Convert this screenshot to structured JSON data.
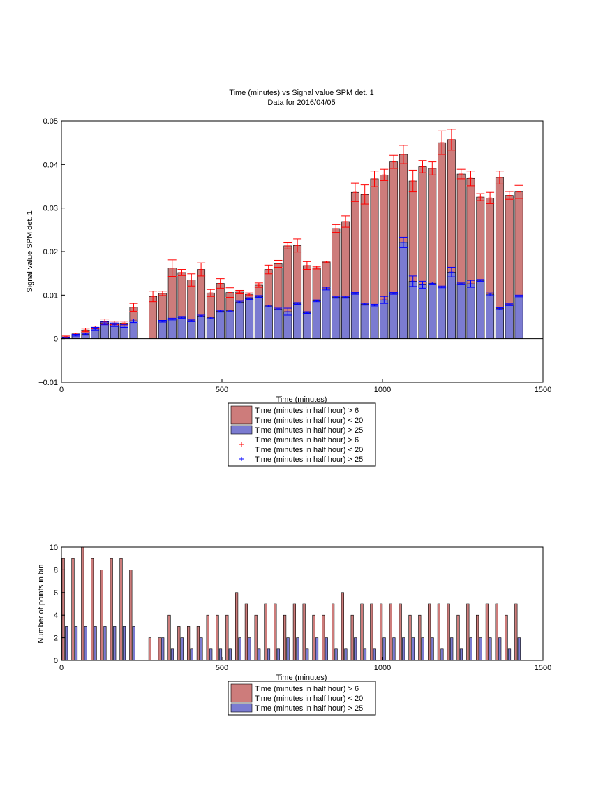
{
  "colors": {
    "bar_red": "#cd7c7b",
    "bar_blue": "#7b7bd1",
    "error_red": "#ff0000",
    "error_blue": "#0000ff",
    "axis": "#000000"
  },
  "chart_data": [
    {
      "type": "bar",
      "title": "Time (minutes) vs Signal value SPM det. 1",
      "subtitle": "Data for 2016/04/05",
      "xlabel": "Time (minutes)",
      "ylabel": "Signal value SPM det. 1",
      "xlim": [
        0,
        1500
      ],
      "ylim": [
        -0.01,
        0.05
      ],
      "xticks": [
        0,
        500,
        1000,
        1500
      ],
      "xtick_labels": [
        "0",
        "500",
        "1000",
        "1500"
      ],
      "yticks": [
        -0.01,
        0,
        0.01,
        0.02,
        0.03,
        0.04,
        0.05
      ],
      "ytick_labels": [
        "−0.01",
        "0",
        "0.01",
        "0.02",
        "0.03",
        "0.04",
        "0.05"
      ],
      "x": [
        15,
        45,
        75,
        105,
        135,
        165,
        195,
        225,
        255,
        285,
        315,
        345,
        375,
        405,
        435,
        465,
        495,
        525,
        555,
        585,
        615,
        645,
        675,
        705,
        735,
        765,
        795,
        825,
        855,
        885,
        915,
        945,
        975,
        1005,
        1035,
        1065,
        1095,
        1125,
        1155,
        1185,
        1215,
        1245,
        1275,
        1305,
        1335,
        1365,
        1395,
        1425
      ],
      "series": [
        {
          "name": "Time (minutes in half hour) > 6\nTime (minutes in half hour) < 20",
          "values": [
            0.0004,
            0.0011,
            0.002,
            0.0026,
            0.0039,
            0.0036,
            0.0036,
            0.0072,
            null,
            0.0097,
            0.0104,
            0.0162,
            0.0152,
            0.0135,
            0.0159,
            0.0105,
            0.0127,
            0.0106,
            0.0107,
            0.0102,
            0.0123,
            0.0159,
            0.0172,
            0.0213,
            0.0214,
            0.0168,
            0.0163,
            0.0176,
            0.0253,
            0.0269,
            0.0336,
            0.0331,
            0.0367,
            0.0376,
            0.0406,
            0.0423,
            0.0362,
            0.0395,
            0.0391,
            0.045,
            0.0457,
            0.0378,
            0.0368,
            0.0325,
            0.0323,
            0.037,
            0.0329,
            0.0337
          ],
          "errors": [
            0.0002,
            0.0002,
            0.0004,
            0.0003,
            0.0006,
            0.0004,
            0.0004,
            0.0009,
            null,
            0.0012,
            0.0005,
            0.0019,
            0.0007,
            0.0014,
            0.0015,
            0.0008,
            0.0011,
            0.0011,
            0.0004,
            0.0003,
            0.0005,
            0.001,
            0.0008,
            0.0007,
            0.0015,
            0.0009,
            0.0003,
            0.0002,
            0.0009,
            0.0013,
            0.0021,
            0.0022,
            0.0018,
            0.0013,
            0.0015,
            0.0021,
            0.0025,
            0.0014,
            0.0015,
            0.0027,
            0.0024,
            0.0011,
            0.0017,
            0.0008,
            0.0013,
            0.0015,
            0.0009,
            0.0015
          ]
        },
        {
          "name": "Time (minutes in half hour) > 25",
          "values": [
            0.0002,
            0.0008,
            0.001,
            0.0023,
            0.0035,
            0.0032,
            0.0029,
            0.0041,
            null,
            null,
            0.004,
            0.0045,
            0.0049,
            0.0041,
            0.0052,
            0.0048,
            0.0063,
            0.0064,
            0.0084,
            0.0092,
            0.0097,
            0.0075,
            0.0068,
            0.0062,
            0.0081,
            0.006,
            0.0087,
            0.0115,
            0.0095,
            0.0095,
            0.0104,
            0.0079,
            0.0077,
            0.0089,
            0.0104,
            0.0221,
            0.0132,
            0.0124,
            0.0127,
            0.0119,
            0.0153,
            0.0126,
            0.0126,
            0.0134,
            0.0102,
            0.0069,
            0.0078,
            0.0098
          ],
          "errors": [
            0.0001,
            0.0002,
            0.0002,
            0.0003,
            0.0003,
            0.0004,
            0.0003,
            0.0004,
            null,
            null,
            0.0002,
            0.0002,
            0.0002,
            0.0002,
            0.0002,
            0.0002,
            0.0002,
            0.0002,
            0.0002,
            0.0002,
            0.0002,
            0.0002,
            0.0002,
            0.0008,
            0.0002,
            0.0002,
            0.0002,
            0.0003,
            0.0002,
            0.0002,
            0.0002,
            0.0002,
            0.0002,
            0.0008,
            0.0002,
            0.0012,
            0.0012,
            0.0008,
            0.0003,
            0.0002,
            0.0011,
            0.0002,
            0.0008,
            0.0002,
            0.0003,
            0.0002,
            0.0002,
            0.0002
          ]
        }
      ],
      "legend": {
        "placement": "below",
        "entries": [
          {
            "marker": "patch",
            "color": "red",
            "lines": [
              "Time (minutes in half hour) > 6",
              "Time (minutes in half hour) < 20"
            ]
          },
          {
            "marker": "patch",
            "color": "blue",
            "lines": [
              "Time (minutes in half hour) > 25"
            ]
          },
          {
            "marker": "plus",
            "color": "red",
            "lines": [
              "Time (minutes in half hour) > 6",
              "Time (minutes in half hour) < 20"
            ]
          },
          {
            "marker": "plus",
            "color": "blue",
            "lines": [
              "Time (minutes in half hour) > 25"
            ]
          }
        ]
      }
    },
    {
      "type": "bar",
      "title": "",
      "xlabel": "Time (minutes)",
      "ylabel": "Number of points in bin",
      "xlim": [
        0,
        1500
      ],
      "ylim": [
        0,
        10
      ],
      "xticks": [
        0,
        500,
        1000,
        1500
      ],
      "xtick_labels": [
        "0",
        "500",
        "1000",
        "1500"
      ],
      "yticks": [
        0,
        2,
        4,
        6,
        8,
        10
      ],
      "ytick_labels": [
        "0",
        "2",
        "4",
        "6",
        "8",
        "10"
      ],
      "x": [
        15,
        45,
        75,
        105,
        135,
        165,
        195,
        225,
        255,
        285,
        315,
        345,
        375,
        405,
        435,
        465,
        495,
        525,
        555,
        585,
        615,
        645,
        675,
        705,
        735,
        765,
        795,
        825,
        855,
        885,
        915,
        945,
        975,
        1005,
        1035,
        1065,
        1095,
        1125,
        1155,
        1185,
        1215,
        1245,
        1275,
        1305,
        1335,
        1365,
        1395,
        1425
      ],
      "series": [
        {
          "name": "Time (minutes in half hour) > 6\nTime (minutes in half hour) < 20",
          "values": [
            9,
            9,
            10,
            9,
            8,
            9,
            9,
            8,
            0,
            2,
            2,
            4,
            3,
            3,
            3,
            4,
            4,
            4,
            6,
            5,
            4,
            5,
            5,
            4,
            5,
            5,
            4,
            4,
            5,
            6,
            4,
            5,
            5,
            5,
            5,
            5,
            4,
            4,
            5,
            5,
            5,
            4,
            5,
            4,
            5,
            5,
            4,
            5
          ]
        },
        {
          "name": "Time (minutes in half hour) > 25",
          "values": [
            3,
            3,
            3,
            3,
            3,
            3,
            3,
            3,
            0,
            0,
            2,
            1,
            2,
            1,
            2,
            1,
            1,
            1,
            2,
            2,
            1,
            1,
            1,
            2,
            2,
            1,
            2,
            2,
            1,
            1,
            2,
            1,
            1,
            2,
            2,
            2,
            2,
            2,
            2,
            1,
            2,
            1,
            2,
            2,
            2,
            2,
            1,
            2
          ]
        }
      ],
      "legend": {
        "placement": "below",
        "entries": [
          {
            "marker": "patch",
            "color": "red",
            "lines": [
              "Time (minutes in half hour) > 6",
              "Time (minutes in half hour) < 20"
            ]
          },
          {
            "marker": "patch",
            "color": "blue",
            "lines": [
              "Time (minutes in half hour) > 25"
            ]
          }
        ]
      }
    }
  ]
}
